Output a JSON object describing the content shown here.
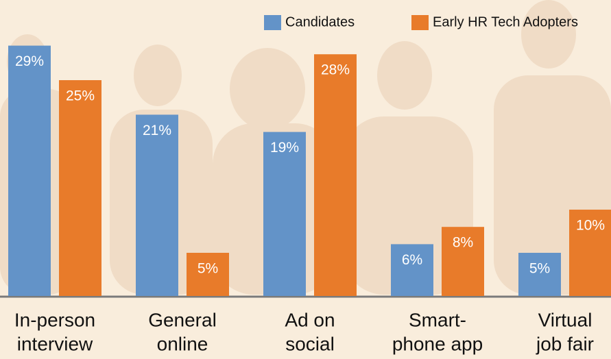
{
  "chart_data": {
    "type": "bar",
    "categories": [
      [
        "In-person",
        "interview"
      ],
      [
        "General",
        "online"
      ],
      [
        "Ad on",
        "social"
      ],
      [
        "Smart-",
        "phone app"
      ],
      [
        "Virtual",
        "job fair"
      ]
    ],
    "series": [
      {
        "name": "Candidates",
        "color": "#6393c8",
        "values": [
          29,
          21,
          19,
          6,
          5
        ],
        "value_labels": [
          "29%",
          "21%",
          "19%",
          "6%",
          "5%"
        ]
      },
      {
        "name": "Early HR Tech Adopters",
        "color": "#e87b2a",
        "values": [
          25,
          5,
          28,
          8,
          10
        ],
        "value_labels": [
          "25%",
          "5%",
          "28%",
          "8%",
          "10%"
        ]
      }
    ]
  }
}
